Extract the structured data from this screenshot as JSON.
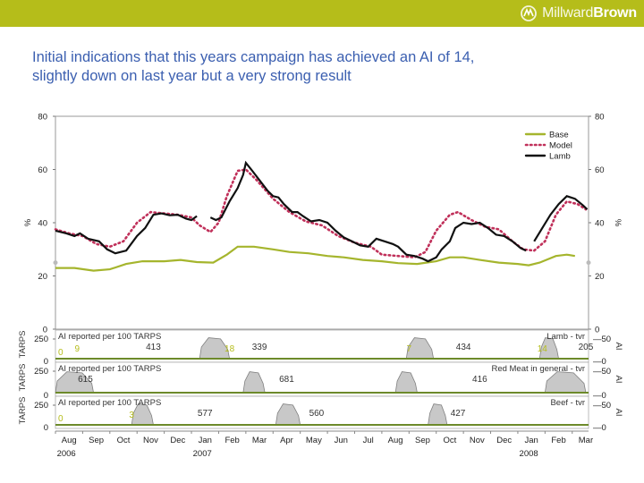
{
  "brand": {
    "name_part1": "Millward",
    "name_part2": "Brown",
    "accent": "#b5bd1a"
  },
  "slide": {
    "title_line1": "Initial indications that this years campaign has achieved an AI of 14,",
    "title_line2": "slightly down on last year but a very strong result"
  },
  "chart_data": {
    "type": "line",
    "ylim": [
      0,
      80
    ],
    "y_ticks": [
      0,
      20,
      40,
      60,
      80
    ],
    "ylabel_left": "%",
    "ylabel_right": "%",
    "x_months": [
      "Aug",
      "Sep",
      "Oct",
      "Nov",
      "Dec",
      "Jan",
      "Feb",
      "Mar",
      "Apr",
      "May",
      "Jun",
      "Jul",
      "Aug",
      "Sep",
      "Oct",
      "Nov",
      "Dec",
      "Jan",
      "Feb",
      "Mar"
    ],
    "x_years": [
      {
        "label": "2006",
        "month_index": 0
      },
      {
        "label": "2007",
        "month_index": 5
      },
      {
        "label": "2008",
        "month_index": 17
      }
    ],
    "x_range": [
      0,
      19.6
    ],
    "legend": [
      "Base",
      "Model",
      "Lamb"
    ],
    "colors": {
      "base": "#a5b52d",
      "model": "#c0305a",
      "lamb": "#111111",
      "tarps_fill": "#c8c8c8",
      "tarps_line": "#808080",
      "ai_line": "#6d8a2a"
    },
    "series": [
      {
        "name": "Base",
        "style": "solid",
        "points": [
          [
            0,
            23
          ],
          [
            0.7,
            23
          ],
          [
            1.4,
            22
          ],
          [
            2,
            22.5
          ],
          [
            2.6,
            24.5
          ],
          [
            3.2,
            25.5
          ],
          [
            4,
            25.5
          ],
          [
            4.6,
            26
          ],
          [
            5.2,
            25.2
          ],
          [
            5.8,
            25
          ],
          [
            6.3,
            28
          ],
          [
            6.7,
            31
          ],
          [
            7.3,
            31
          ],
          [
            8,
            30
          ],
          [
            8.6,
            29
          ],
          [
            9.3,
            28.5
          ],
          [
            10,
            27.5
          ],
          [
            10.6,
            27
          ],
          [
            11.3,
            26
          ],
          [
            12,
            25.5
          ],
          [
            12.6,
            24.8
          ],
          [
            13.3,
            24.5
          ],
          [
            14,
            25.5
          ],
          [
            14.5,
            27
          ],
          [
            15,
            27
          ],
          [
            15.6,
            26
          ],
          [
            16.3,
            25
          ],
          [
            17,
            24.5
          ],
          [
            17.4,
            24
          ],
          [
            17.8,
            25
          ],
          [
            18.4,
            27.5
          ],
          [
            18.8,
            28
          ],
          [
            19.1,
            27.5
          ]
        ]
      },
      {
        "name": "Model",
        "style": "dotted",
        "points": [
          [
            0,
            37.5
          ],
          [
            0.5,
            36
          ],
          [
            1,
            35
          ],
          [
            1.5,
            32
          ],
          [
            2,
            31
          ],
          [
            2.5,
            33
          ],
          [
            3,
            40
          ],
          [
            3.5,
            44
          ],
          [
            4,
            43.5
          ],
          [
            4.5,
            43
          ],
          [
            5,
            42
          ],
          [
            5.3,
            39
          ],
          [
            5.7,
            36.5
          ],
          [
            6,
            40
          ],
          [
            6.3,
            50
          ],
          [
            6.7,
            59.5
          ],
          [
            7,
            60
          ],
          [
            7.4,
            56
          ],
          [
            8,
            49
          ],
          [
            8.6,
            44
          ],
          [
            9.2,
            40.5
          ],
          [
            9.8,
            39
          ],
          [
            10.4,
            35
          ],
          [
            11,
            32.5
          ],
          [
            11.6,
            31
          ],
          [
            12,
            28
          ],
          [
            12.6,
            27.5
          ],
          [
            13.2,
            27
          ],
          [
            13.6,
            29
          ],
          [
            14,
            37
          ],
          [
            14.5,
            43
          ],
          [
            14.8,
            44
          ],
          [
            15.3,
            41
          ],
          [
            15.8,
            38.5
          ],
          [
            16.3,
            37.5
          ],
          [
            16.8,
            33
          ],
          [
            17.2,
            30
          ],
          [
            17.6,
            29.5
          ],
          [
            18,
            33
          ],
          [
            18.4,
            43
          ],
          [
            18.8,
            48
          ],
          [
            19.2,
            47
          ],
          [
            19.5,
            45
          ]
        ]
      },
      {
        "name": "Lamb",
        "style": "solid",
        "segments": [
          [
            [
              0,
              37
            ],
            [
              0.4,
              36
            ],
            [
              0.7,
              35
            ],
            [
              0.9,
              36
            ],
            [
              1.2,
              34
            ],
            [
              1.6,
              33
            ],
            [
              1.9,
              30
            ],
            [
              2.2,
              28.5
            ],
            [
              2.6,
              29.5
            ],
            [
              3,
              35
            ],
            [
              3.3,
              38
            ],
            [
              3.6,
              43
            ],
            [
              3.9,
              43.5
            ],
            [
              4.2,
              42.8
            ],
            [
              4.5,
              43
            ],
            [
              4.8,
              41.5
            ],
            [
              5,
              41
            ],
            [
              5.2,
              42.5
            ]
          ],
          [
            [
              5.7,
              42
            ],
            [
              5.9,
              41
            ],
            [
              6.1,
              42
            ],
            [
              6.4,
              48
            ],
            [
              6.7,
              53
            ],
            [
              6.9,
              58
            ],
            [
              7,
              62.5
            ],
            [
              7.2,
              60
            ],
            [
              7.5,
              56
            ],
            [
              7.8,
              52
            ],
            [
              8,
              50
            ],
            [
              8.2,
              49.5
            ],
            [
              8.4,
              47
            ],
            [
              8.7,
              44
            ],
            [
              8.9,
              44
            ],
            [
              9.1,
              42.5
            ],
            [
              9.4,
              40.5
            ],
            [
              9.7,
              41
            ],
            [
              10,
              40
            ],
            [
              10.3,
              37
            ],
            [
              10.6,
              34.5
            ],
            [
              10.9,
              33
            ],
            [
              11.2,
              31.5
            ],
            [
              11.5,
              31
            ],
            [
              11.8,
              34
            ],
            [
              12.1,
              33
            ],
            [
              12.4,
              32
            ],
            [
              12.6,
              31
            ],
            [
              12.9,
              28
            ],
            [
              13.2,
              27.5
            ],
            [
              13.5,
              26.5
            ],
            [
              13.7,
              25.5
            ],
            [
              14,
              27
            ],
            [
              14.2,
              30
            ],
            [
              14.5,
              33
            ],
            [
              14.7,
              38
            ],
            [
              15,
              40
            ],
            [
              15.3,
              39.5
            ],
            [
              15.6,
              40
            ],
            [
              15.9,
              38
            ],
            [
              16.2,
              35.5
            ],
            [
              16.5,
              35
            ],
            [
              16.8,
              33
            ],
            [
              17.1,
              30.5
            ],
            [
              17.3,
              29.5
            ]
          ],
          [
            [
              17.6,
              33
            ],
            [
              17.9,
              38
            ],
            [
              18.2,
              43
            ],
            [
              18.5,
              47
            ],
            [
              18.8,
              50
            ],
            [
              19.1,
              49
            ],
            [
              19.4,
              46.5
            ],
            [
              19.55,
              45
            ]
          ]
        ]
      }
    ],
    "tarps_panels": [
      {
        "y_label": "TARPS",
        "ai_axis_label": "AI",
        "scale_top_left": "250",
        "scale_bottom_left": "0",
        "scale_top_right": "50",
        "scale_bottom_right": "0",
        "header": "AI reported per 100 TARPS",
        "product": "Lamb - tvr",
        "ai_start": "0",
        "ai_values": [
          {
            "x": 0.8,
            "value": "9"
          },
          {
            "x": 6.4,
            "value": "18"
          },
          {
            "x": 13.0,
            "value": "7"
          },
          {
            "x": 17.9,
            "value": "14"
          }
        ],
        "tarps_totals": [
          {
            "x": 3.6,
            "value": "413"
          },
          {
            "x": 7.5,
            "value": "339"
          },
          {
            "x": 15.0,
            "value": "434"
          },
          {
            "x": 19.5,
            "value": "205"
          }
        ],
        "bursts": [
          [
            5.3,
            6.4
          ],
          [
            12.9,
            13.9
          ],
          [
            17.8,
            18.5
          ]
        ]
      },
      {
        "y_label": "TARPS",
        "ai_axis_label": "AI",
        "scale_top_left": "250",
        "scale_bottom_left": "0",
        "scale_top_right": "50",
        "scale_bottom_right": "0",
        "header": "AI reported per 100 TARPS",
        "product": "Red Meat in general - tvr",
        "ai_start": "",
        "ai_values": [],
        "tarps_totals": [
          {
            "x": 1.1,
            "value": "615"
          },
          {
            "x": 8.5,
            "value": "681"
          },
          {
            "x": 15.6,
            "value": "416"
          }
        ],
        "bursts": [
          [
            0,
            1.4
          ],
          [
            6.9,
            7.7
          ],
          [
            12.5,
            13.3
          ],
          [
            18,
            19.5
          ]
        ]
      },
      {
        "y_label": "TARPS",
        "ai_axis_label": "AI",
        "scale_top_left": "250",
        "scale_bottom_left": "0",
        "scale_top_right": "50",
        "scale_bottom_right": "0",
        "header": "AI reported per 100 TARPS",
        "product": "Beef - tvr",
        "ai_start": "0",
        "ai_values": [
          {
            "x": 2.8,
            "value": "3"
          }
        ],
        "tarps_totals": [
          {
            "x": 5.5,
            "value": "577"
          },
          {
            "x": 9.6,
            "value": "560"
          },
          {
            "x": 14.8,
            "value": "427"
          }
        ],
        "bursts": [
          [
            2.8,
            3.6
          ],
          [
            8.1,
            9.0
          ],
          [
            13.7,
            14.4
          ]
        ]
      }
    ]
  }
}
